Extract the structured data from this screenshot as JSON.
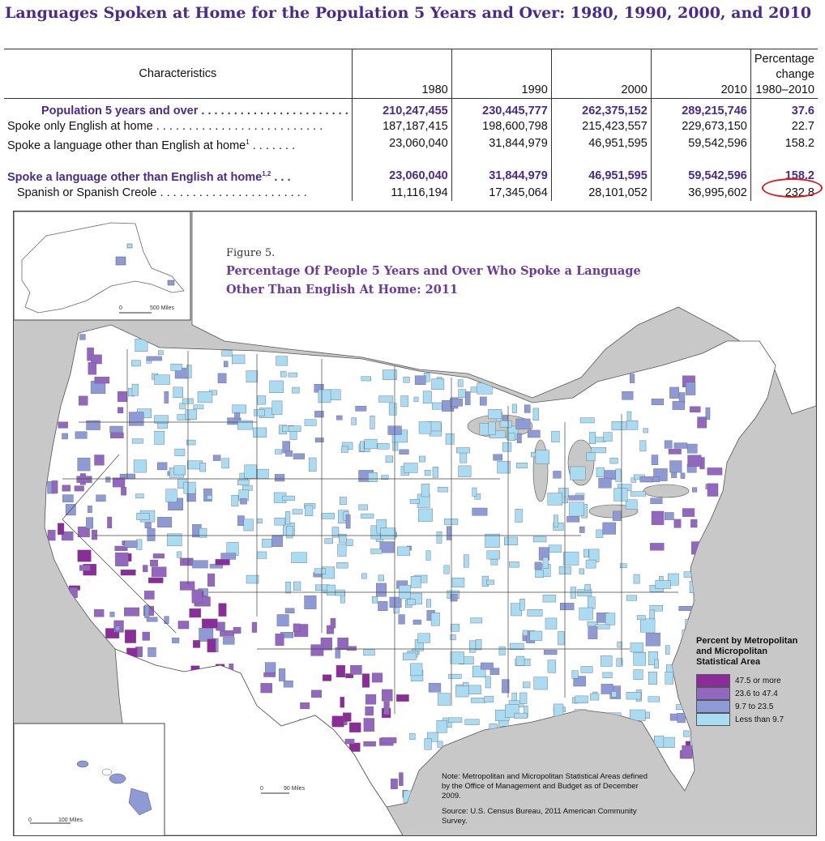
{
  "title": "Languages Spoken at Home for the Population 5 Years and Over: 1980, 1990, 2000, and 2010",
  "table": {
    "header": {
      "characteristics": "Characteristics",
      "y1980": "1980",
      "y1990": "1990",
      "y2000": "2000",
      "y2010": "2010",
      "pct_line1": "Percentage",
      "pct_line2": "change",
      "pct_line3": "1980–2010"
    },
    "rows": [
      {
        "label": "Population 5 years and over",
        "dots": " . . . . . . . . . . . . . . . . . . . . . . .",
        "v1980": "210,247,455",
        "v1990": "230,445,777",
        "v2000": "262,375,152",
        "v2010": "289,215,746",
        "pct": "37.6"
      },
      {
        "label": "Spoke only English at home",
        "dots": " . . . . . . . . . . . . . . . . . . . . . . . . . .",
        "v1980": "187,187,415",
        "v1990": "198,600,798",
        "v2000": "215,423,557",
        "v2010": "229,673,150",
        "pct": "22.7"
      },
      {
        "label": "Spoke a language other than English at home",
        "sup": "1",
        "dots": " . . . . . . .",
        "v1980": "23,060,040",
        "v1990": "31,844,979",
        "v2000": "46,951,595",
        "v2010": "59,542,596",
        "pct": "158.2"
      },
      {
        "label": "Spoke a language other than English at home",
        "sup": "1,2",
        "dots": " . . .",
        "v1980": "23,060,040",
        "v1990": "31,844,979",
        "v2000": "46,951,595",
        "v2010": "59,542,596",
        "pct": "158.2"
      },
      {
        "label": "Spanish or Spanish Creole",
        "dots": " . . . . . . . . . . . . . . . . . . . . . . .",
        "v1980": "11,116,194",
        "v1990": "17,345,064",
        "v2000": "28,101,052",
        "v2010": "36,995,602",
        "pct": "232.8"
      }
    ]
  },
  "map": {
    "figure_label": "Figure 5.",
    "figure_title_line1": "Percentage Of People 5 Years and Over Who Spoke a Language",
    "figure_title_line2": "Other Than English At Home: 2011",
    "legend": {
      "title_line1": "Percent by Metropolitan",
      "title_line2": "and Micropolitan",
      "title_line3": "Statistical Area",
      "items": [
        {
          "label": "47.5 or more",
          "color": "#8b2c9a"
        },
        {
          "label": "23.6 to 47.4",
          "color": "#9366c0"
        },
        {
          "label": "9.7 to 23.5",
          "color": "#8d9ad6"
        },
        {
          "label": "Less than 9.7",
          "color": "#a9dcf2"
        }
      ]
    },
    "note": "Note: Metropolitan and Micropolitan Statistical Areas defined by the Office of Management and Budget as of December 2009.",
    "source": "Source: U.S. Census Bureau, 2011 American Community Survey.",
    "scale_alaska": "500 Miles",
    "scale_hawaii": "100 Miles",
    "scale_pr": "90 Miles",
    "scale_zero": "0",
    "colors": {
      "water": "#c8c8c8",
      "land": "#ffffff",
      "border": "#555555"
    }
  }
}
